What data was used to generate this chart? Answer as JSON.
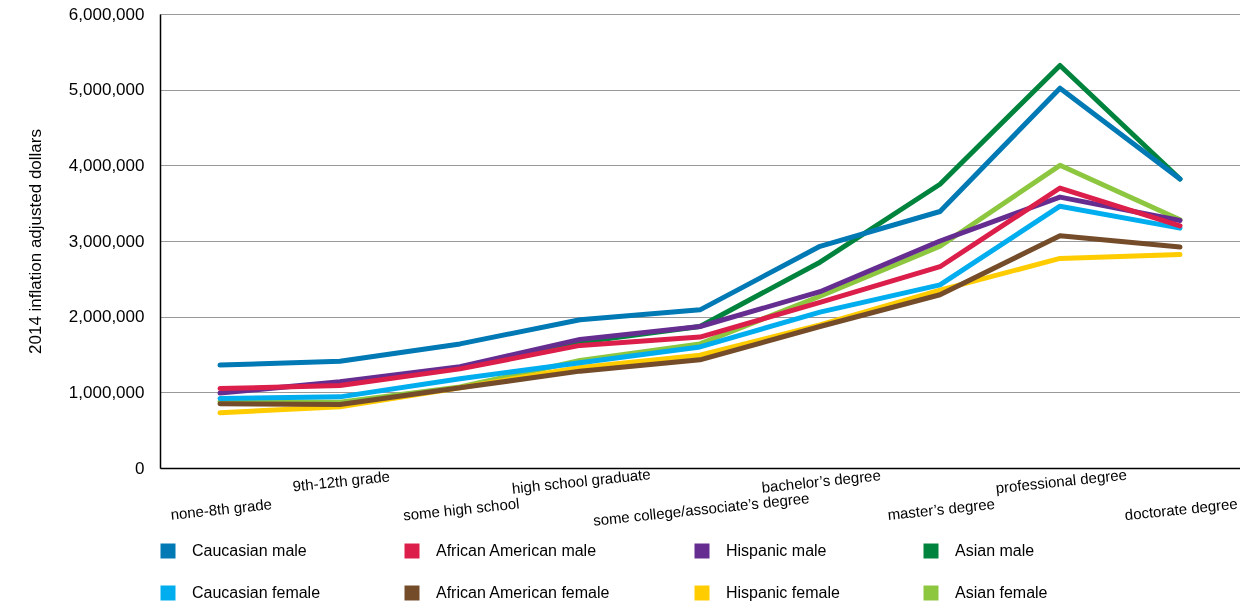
{
  "chart_data": {
    "type": "line",
    "ylabel": "2014 inflation adjusted dollars",
    "categories": [
      "none-8th grade",
      "9th-12th grade",
      "some high school",
      "high school graduate",
      "some college/associate’s degree",
      "bachelor’s degree",
      "master’s degree",
      "professional degree",
      "doctorate degree"
    ],
    "series": [
      {
        "name": "Caucasian male",
        "color": "#0079b4",
        "values": [
          1360000,
          1410000,
          1640000,
          1960000,
          2090000,
          2930000,
          3390000,
          5020000,
          3820000
        ]
      },
      {
        "name": "African American male",
        "color": "#dc1e4a",
        "values": [
          1050000,
          1090000,
          1310000,
          1620000,
          1730000,
          2190000,
          2660000,
          3700000,
          3200000
        ]
      },
      {
        "name": "Hispanic male",
        "color": "#662d91",
        "values": [
          990000,
          1140000,
          1340000,
          1700000,
          1870000,
          2330000,
          3000000,
          3580000,
          3270000
        ]
      },
      {
        "name": "Asian male",
        "color": "#00843d",
        "values": [
          null,
          null,
          1320000,
          1660000,
          1870000,
          2720000,
          3750000,
          5320000,
          3820000
        ]
      },
      {
        "name": "Caucasian female",
        "color": "#00aeef",
        "values": [
          920000,
          940000,
          1180000,
          1390000,
          1600000,
          2060000,
          2420000,
          3460000,
          3170000
        ]
      },
      {
        "name": "African American female",
        "color": "#754c29",
        "values": [
          850000,
          840000,
          1060000,
          1280000,
          1430000,
          1870000,
          2290000,
          3070000,
          2920000
        ]
      },
      {
        "name": "Hispanic female",
        "color": "#ffcc00",
        "values": [
          730000,
          810000,
          1060000,
          1330000,
          1490000,
          1890000,
          2350000,
          2770000,
          2820000
        ]
      },
      {
        "name": "Asian female",
        "color": "#8dc63f",
        "values": [
          880000,
          870000,
          1070000,
          1420000,
          1640000,
          2270000,
          2930000,
          4000000,
          3280000
        ]
      }
    ],
    "ylim": [
      0,
      6000000
    ],
    "yticks": [
      0,
      {
        "value": 1000000,
        "label": "1,000,000"
      },
      {
        "value": 2000000,
        "label": "2,000,000"
      },
      {
        "value": 3000000,
        "label": "3,000,000"
      },
      {
        "value": 4000000,
        "label": "4,000,000"
      },
      {
        "value": 5000000,
        "label": "5,000,000"
      },
      {
        "value": 6000000,
        "label": "6,000,000"
      }
    ],
    "grid": "y",
    "legend": "bottom",
    "marker": "none",
    "line_style": "solid"
  }
}
